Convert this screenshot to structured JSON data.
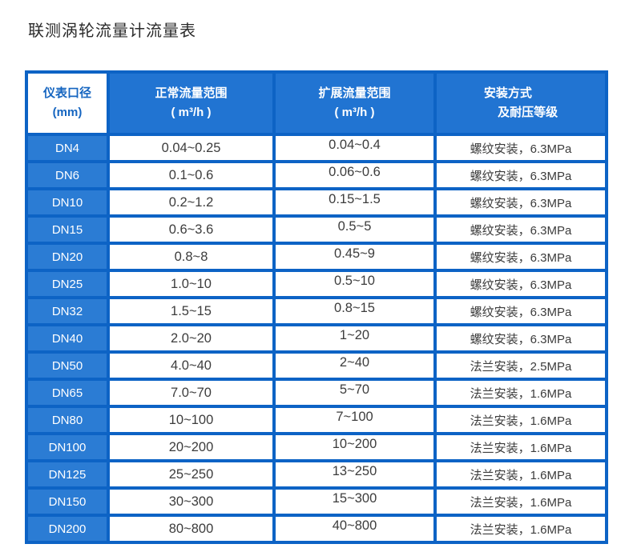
{
  "page": {
    "title": "联测涡轮流量计流量表"
  },
  "colors": {
    "border_blue": "#0d63c5",
    "header_bg": "#2174d2",
    "first_column_bg": "#2b7cd4",
    "header_text": "#ffffff",
    "first_header_text": "#1565c0",
    "cell_text": "#3c3c3c"
  },
  "table": {
    "headers": {
      "col1_line1": "仪表口径",
      "col1_line2": "(mm)",
      "col2_line1": "正常流量范围",
      "col2_line2": "( m³/h )",
      "col3_line1": "扩展流量范围",
      "col3_line2": "( m³/h )",
      "col4_line1": "安装方式",
      "col4_line2": "及耐压等级"
    },
    "rows": [
      {
        "dn": "DN4",
        "normal": "0.04~0.25",
        "extended": "0.04~0.4",
        "install": "螺纹安装，6.3MPa"
      },
      {
        "dn": "DN6",
        "normal": "0.1~0.6",
        "extended": "0.06~0.6",
        "install": "螺纹安装，6.3MPa"
      },
      {
        "dn": "DN10",
        "normal": "0.2~1.2",
        "extended": "0.15~1.5",
        "install": "螺纹安装，6.3MPa"
      },
      {
        "dn": "DN15",
        "normal": "0.6~3.6",
        "extended": "0.5~5",
        "install": "螺纹安装，6.3MPa"
      },
      {
        "dn": "DN20",
        "normal": "0.8~8",
        "extended": "0.45~9",
        "install": "螺纹安装，6.3MPa"
      },
      {
        "dn": "DN25",
        "normal": "1.0~10",
        "extended": "0.5~10",
        "install": "螺纹安装，6.3MPa"
      },
      {
        "dn": "DN32",
        "normal": "1.5~15",
        "extended": "0.8~15",
        "install": "螺纹安装，6.3MPa"
      },
      {
        "dn": "DN40",
        "normal": "2.0~20",
        "extended": "1~20",
        "install": "螺纹安装，6.3MPa"
      },
      {
        "dn": "DN50",
        "normal": "4.0~40",
        "extended": "2~40",
        "install": "法兰安装，2.5MPa"
      },
      {
        "dn": "DN65",
        "normal": "7.0~70",
        "extended": "5~70",
        "install": "法兰安装，1.6MPa"
      },
      {
        "dn": "DN80",
        "normal": "10~100",
        "extended": "7~100",
        "install": "法兰安装，1.6MPa"
      },
      {
        "dn": "DN100",
        "normal": "20~200",
        "extended": "10~200",
        "install": "法兰安装，1.6MPa"
      },
      {
        "dn": "DN125",
        "normal": "25~250",
        "extended": "13~250",
        "install": "法兰安装，1.6MPa"
      },
      {
        "dn": "DN150",
        "normal": "30~300",
        "extended": "15~300",
        "install": "法兰安装，1.6MPa"
      },
      {
        "dn": "DN200",
        "normal": "80~800",
        "extended": "40~800",
        "install": "法兰安装，1.6MPa"
      }
    ]
  }
}
